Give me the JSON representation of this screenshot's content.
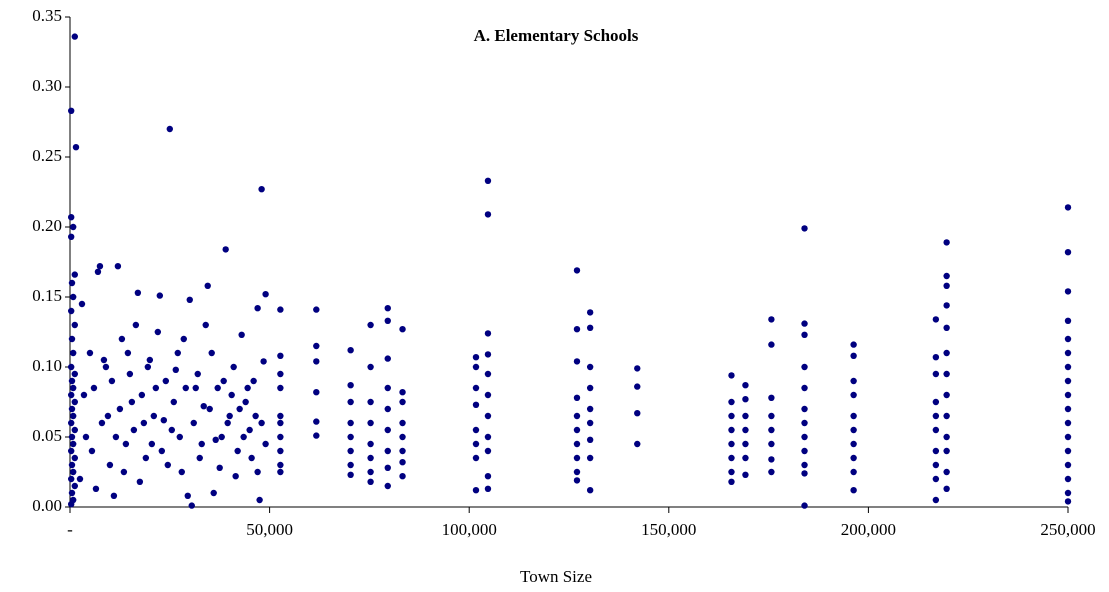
{
  "chart_data": {
    "type": "scatter",
    "title": "A. Elementary Schools",
    "x_label": "Town Size",
    "color": "#000080",
    "xlim": [
      0,
      250000
    ],
    "ylim": [
      0,
      0.35
    ],
    "xticks": [
      {
        "value": 0,
        "label": "-"
      },
      {
        "value": 50000,
        "label": "50,000"
      },
      {
        "value": 100000,
        "label": "100,000"
      },
      {
        "value": 150000,
        "label": "150,000"
      },
      {
        "value": 200000,
        "label": "200,000"
      },
      {
        "value": 250000,
        "label": "250,000"
      }
    ],
    "yticks": [
      {
        "value": 0,
        "label": "0.00"
      },
      0.05,
      {
        "value": 0.1,
        "label": "0.10"
      },
      0.15,
      {
        "value": 0.2,
        "label": "0.20"
      },
      0.25,
      {
        "value": 0.3,
        "label": "0.30"
      },
      0.35
    ],
    "x": [
      1200,
      300,
      1500,
      300,
      800,
      300,
      1200,
      500,
      800,
      300,
      1200,
      500,
      800,
      300,
      1200,
      500,
      800,
      300,
      1200,
      500,
      800,
      300,
      1200,
      500,
      800,
      300,
      1200,
      500,
      800,
      300,
      1200,
      500,
      800,
      300,
      3000,
      4000,
      5000,
      6000,
      7000,
      7500,
      8000,
      9000,
      10000,
      11000,
      12000,
      12500,
      13000,
      14000,
      15000,
      16000,
      17000,
      18000,
      19000,
      20000,
      21000,
      22000,
      22500,
      23000,
      24000,
      25000,
      25500,
      26000,
      27000,
      28000,
      29000,
      29500,
      30000,
      30500,
      31000,
      32000,
      33000,
      34000,
      34500,
      35000,
      36000,
      37000,
      38000,
      39000,
      40000,
      41000,
      42000,
      43000,
      44000,
      45000,
      46000,
      47000,
      47500,
      48000,
      48500,
      49000,
      2500,
      3500,
      5500,
      6500,
      8500,
      9500,
      10500,
      11500,
      13500,
      14500,
      15500,
      16500,
      17500,
      18500,
      19500,
      20500,
      21500,
      23500,
      24500,
      26500,
      27500,
      28500,
      31500,
      32500,
      33500,
      35500,
      36500,
      37500,
      38500,
      39500,
      40500,
      41500,
      42500,
      43500,
      44500,
      45500,
      46500,
      47000,
      48000,
      49000,
      52700,
      52700,
      52700,
      52700,
      52700,
      52700,
      52700,
      52700,
      52700,
      52700,
      61700,
      61700,
      61700,
      61700,
      61700,
      61700,
      70300,
      70300,
      70300,
      70300,
      70300,
      70300,
      70300,
      70300,
      75300,
      75300,
      75300,
      75300,
      75300,
      75300,
      75300,
      75300,
      79600,
      79600,
      79600,
      79600,
      79600,
      79600,
      79600,
      79600,
      79600,
      83300,
      83300,
      83300,
      83300,
      83300,
      83300,
      83300,
      83300,
      101700,
      101700,
      101700,
      101700,
      101700,
      101700,
      101700,
      101700,
      104700,
      104700,
      104700,
      104700,
      104700,
      104700,
      104700,
      104700,
      104700,
      104700,
      104700,
      127000,
      127000,
      127000,
      127000,
      127000,
      127000,
      127000,
      127000,
      127000,
      127000,
      130300,
      130300,
      130300,
      130300,
      130300,
      130300,
      130300,
      130300,
      130300,
      142100,
      142100,
      142100,
      142100,
      165700,
      165700,
      165700,
      165700,
      165700,
      165700,
      165700,
      165700,
      169200,
      169200,
      169200,
      169200,
      169200,
      169200,
      169200,
      175700,
      175700,
      175700,
      175700,
      175700,
      175700,
      175700,
      175700,
      184000,
      184000,
      184000,
      184000,
      184000,
      184000,
      184000,
      184000,
      184000,
      184000,
      184000,
      184000,
      196300,
      196300,
      196300,
      196300,
      196300,
      196300,
      196300,
      196300,
      196300,
      196300,
      216900,
      216900,
      216900,
      216900,
      216900,
      216900,
      216900,
      216900,
      216900,
      216900,
      219600,
      219600,
      219600,
      219600,
      219600,
      219600,
      219600,
      219600,
      219600,
      219600,
      219600,
      219600,
      219600,
      250000,
      250000,
      250000,
      250000,
      250000,
      250000,
      250000,
      250000,
      250000,
      250000,
      250000,
      250000,
      250000,
      250000,
      250000,
      250000,
      250000
    ],
    "values": [
      0.336,
      0.283,
      0.257,
      0.207,
      0.2,
      0.193,
      0.166,
      0.16,
      0.15,
      0.14,
      0.13,
      0.12,
      0.11,
      0.1,
      0.095,
      0.09,
      0.085,
      0.08,
      0.075,
      0.07,
      0.065,
      0.06,
      0.055,
      0.05,
      0.045,
      0.04,
      0.035,
      0.03,
      0.025,
      0.02,
      0.015,
      0.01,
      0.005,
      0.002,
      0.145,
      0.05,
      0.11,
      0.085,
      0.168,
      0.172,
      0.06,
      0.1,
      0.03,
      0.008,
      0.172,
      0.07,
      0.12,
      0.045,
      0.095,
      0.055,
      0.153,
      0.08,
      0.035,
      0.105,
      0.065,
      0.125,
      0.151,
      0.04,
      0.09,
      0.27,
      0.055,
      0.075,
      0.11,
      0.025,
      0.085,
      0.008,
      0.148,
      0.001,
      0.06,
      0.095,
      0.045,
      0.13,
      0.158,
      0.07,
      0.01,
      0.085,
      0.05,
      0.184,
      0.065,
      0.1,
      0.04,
      0.123,
      0.075,
      0.055,
      0.09,
      0.142,
      0.005,
      0.227,
      0.104,
      0.152,
      0.02,
      0.08,
      0.04,
      0.013,
      0.105,
      0.065,
      0.09,
      0.05,
      0.025,
      0.11,
      0.075,
      0.13,
      0.018,
      0.06,
      0.1,
      0.045,
      0.085,
      0.062,
      0.03,
      0.098,
      0.05,
      0.12,
      0.085,
      0.035,
      0.072,
      0.11,
      0.048,
      0.028,
      0.09,
      0.06,
      0.08,
      0.022,
      0.07,
      0.05,
      0.085,
      0.035,
      0.065,
      0.025,
      0.06,
      0.045,
      0.141,
      0.108,
      0.095,
      0.085,
      0.065,
      0.06,
      0.05,
      0.04,
      0.03,
      0.025,
      0.141,
      0.115,
      0.104,
      0.082,
      0.061,
      0.051,
      0.112,
      0.087,
      0.075,
      0.06,
      0.05,
      0.04,
      0.03,
      0.023,
      0.13,
      0.1,
      0.075,
      0.06,
      0.045,
      0.035,
      0.025,
      0.018,
      0.142,
      0.133,
      0.106,
      0.085,
      0.07,
      0.055,
      0.04,
      0.028,
      0.015,
      0.127,
      0.082,
      0.075,
      0.06,
      0.05,
      0.04,
      0.032,
      0.022,
      0.107,
      0.1,
      0.085,
      0.073,
      0.055,
      0.045,
      0.035,
      0.012,
      0.233,
      0.209,
      0.124,
      0.109,
      0.095,
      0.08,
      0.065,
      0.05,
      0.04,
      0.022,
      0.013,
      0.169,
      0.127,
      0.104,
      0.078,
      0.065,
      0.055,
      0.045,
      0.035,
      0.025,
      0.019,
      0.139,
      0.128,
      0.1,
      0.085,
      0.07,
      0.06,
      0.048,
      0.035,
      0.012,
      0.099,
      0.086,
      0.067,
      0.045,
      0.094,
      0.075,
      0.065,
      0.055,
      0.045,
      0.035,
      0.025,
      0.018,
      0.087,
      0.077,
      0.065,
      0.055,
      0.045,
      0.035,
      0.023,
      0.134,
      0.116,
      0.078,
      0.065,
      0.055,
      0.045,
      0.034,
      0.025,
      0.199,
      0.131,
      0.123,
      0.1,
      0.085,
      0.07,
      0.06,
      0.05,
      0.04,
      0.03,
      0.024,
      0.001,
      0.116,
      0.108,
      0.09,
      0.08,
      0.065,
      0.055,
      0.045,
      0.035,
      0.025,
      0.012,
      0.134,
      0.107,
      0.095,
      0.075,
      0.065,
      0.055,
      0.04,
      0.03,
      0.02,
      0.005,
      0.189,
      0.165,
      0.158,
      0.144,
      0.128,
      0.11,
      0.095,
      0.08,
      0.065,
      0.05,
      0.04,
      0.025,
      0.013,
      0.214,
      0.182,
      0.154,
      0.133,
      0.12,
      0.11,
      0.1,
      0.09,
      0.08,
      0.07,
      0.06,
      0.05,
      0.04,
      0.03,
      0.02,
      0.01,
      0.004
    ]
  }
}
